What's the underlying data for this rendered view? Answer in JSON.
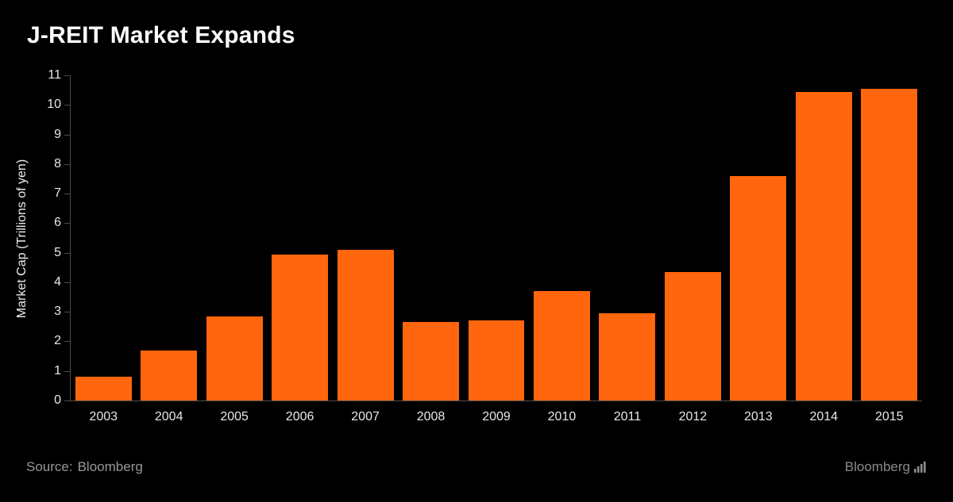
{
  "header": {
    "title": "J-REIT Market Expands"
  },
  "chart_data": {
    "type": "bar",
    "title": "J-REIT Market Expands",
    "categories": [
      "2003",
      "2004",
      "2005",
      "2006",
      "2007",
      "2008",
      "2009",
      "2010",
      "2011",
      "2012",
      "2013",
      "2014",
      "2015"
    ],
    "values": [
      0.8,
      1.7,
      2.85,
      4.95,
      5.1,
      2.65,
      2.7,
      3.7,
      2.95,
      4.35,
      7.6,
      10.45,
      10.55
    ],
    "xlabel": "",
    "ylabel": "Market Cap (Trillions of yen)",
    "ylim": [
      0,
      11
    ],
    "ytick_step": 1,
    "grid": false,
    "legend_position": "none",
    "bar_color": "#ff660d",
    "background": "#000000",
    "axis_color": "#4d4d4d",
    "tick_label_color": "#e8e8e8"
  },
  "footer": {
    "source_label": "Source:",
    "source_value": "Bloomberg",
    "brand": "Bloomberg"
  }
}
